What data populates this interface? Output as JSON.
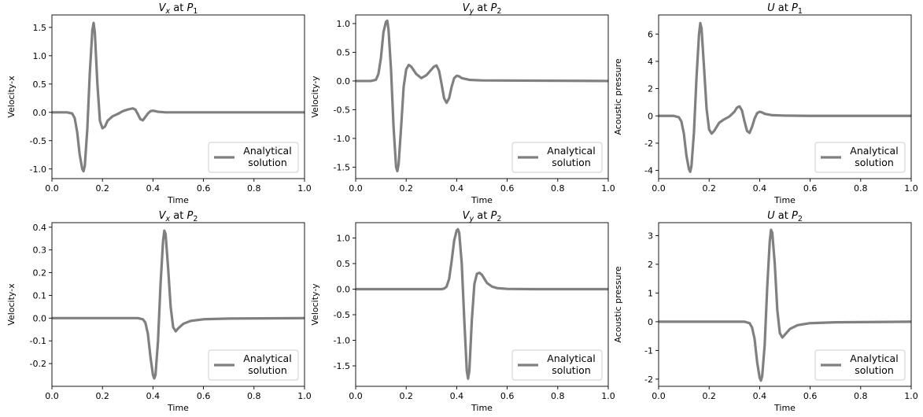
{
  "figure": {
    "background": "#ffffff",
    "line_color": "#808080"
  },
  "chart_data": [
    {
      "type": "line",
      "title": "V_x at P_1",
      "title_parts": {
        "base": "V",
        "sub": "x",
        "mid": " at ",
        "point": "P",
        "point_sub": "1"
      },
      "xlabel": "Time",
      "ylabel": "Velocity-x",
      "xlim": [
        0.0,
        1.0
      ],
      "ylim": [
        -1.17,
        1.72
      ],
      "xticks": [
        "0.0",
        "0.2",
        "0.4",
        "0.6",
        "0.8",
        "1.0"
      ],
      "yticks": [
        "-1.0",
        "-0.5",
        "0.0",
        "0.5",
        "1.0",
        "1.5"
      ],
      "ytick_values": [
        -1.0,
        -0.5,
        0.0,
        0.5,
        1.0,
        1.5
      ],
      "grid": false,
      "legend_position": "lower right",
      "series": [
        {
          "name": "Analytical\nsolution",
          "color": "#808080",
          "x": [
            0.0,
            0.06,
            0.08,
            0.09,
            0.1,
            0.11,
            0.12,
            0.125,
            0.13,
            0.14,
            0.15,
            0.16,
            0.165,
            0.17,
            0.18,
            0.19,
            0.2,
            0.21,
            0.22,
            0.24,
            0.26,
            0.28,
            0.3,
            0.32,
            0.33,
            0.34,
            0.35,
            0.36,
            0.37,
            0.38,
            0.39,
            0.4,
            0.41,
            0.42,
            0.45,
            0.5,
            0.6,
            1.0
          ],
          "y": [
            0.0,
            0.0,
            -0.02,
            -0.1,
            -0.35,
            -0.75,
            -1.0,
            -1.04,
            -0.95,
            -0.3,
            0.7,
            1.45,
            1.58,
            1.4,
            0.5,
            -0.15,
            -0.28,
            -0.25,
            -0.15,
            -0.07,
            -0.03,
            0.02,
            0.05,
            0.07,
            0.05,
            -0.03,
            -0.12,
            -0.14,
            -0.08,
            -0.02,
            0.02,
            0.03,
            0.02,
            0.01,
            0.0,
            0.0,
            0.0,
            0.0
          ]
        }
      ]
    },
    {
      "type": "line",
      "title": "V_y at P_2",
      "title_parts": {
        "base": "V",
        "sub": "y",
        "mid": " at ",
        "point": "P",
        "point_sub": "2"
      },
      "xlabel": "Time",
      "ylabel": "Velocity-y",
      "xlim": [
        0.0,
        1.0
      ],
      "ylim": [
        -1.7,
        1.15
      ],
      "xticks": [
        "0.0",
        "0.2",
        "0.4",
        "0.6",
        "0.8",
        "1.0"
      ],
      "yticks": [
        "-1.5",
        "-1.0",
        "-0.5",
        "0.0",
        "0.5",
        "1.0"
      ],
      "ytick_values": [
        -1.5,
        -1.0,
        -0.5,
        0.0,
        0.5,
        1.0
      ],
      "grid": false,
      "legend_position": "lower right",
      "series": [
        {
          "name": "Analytical\nsolution",
          "color": "#808080",
          "x": [
            0.0,
            0.06,
            0.08,
            0.09,
            0.1,
            0.11,
            0.12,
            0.125,
            0.13,
            0.14,
            0.15,
            0.16,
            0.165,
            0.17,
            0.18,
            0.19,
            0.2,
            0.21,
            0.22,
            0.24,
            0.26,
            0.28,
            0.3,
            0.31,
            0.32,
            0.33,
            0.34,
            0.35,
            0.36,
            0.37,
            0.38,
            0.39,
            0.4,
            0.41,
            0.42,
            0.45,
            0.5,
            1.0
          ],
          "y": [
            0.0,
            0.0,
            0.02,
            0.12,
            0.4,
            0.85,
            1.03,
            1.05,
            0.9,
            0.2,
            -0.8,
            -1.5,
            -1.57,
            -1.45,
            -0.8,
            -0.1,
            0.2,
            0.28,
            0.25,
            0.12,
            0.05,
            0.1,
            0.2,
            0.25,
            0.27,
            0.18,
            -0.05,
            -0.3,
            -0.38,
            -0.3,
            -0.1,
            0.05,
            0.09,
            0.08,
            0.05,
            0.02,
            0.01,
            0.0
          ]
        }
      ]
    },
    {
      "type": "line",
      "title": "U at P_1",
      "title_parts": {
        "base": "U",
        "sub": "",
        "mid": " at ",
        "point": "P",
        "point_sub": "1"
      },
      "xlabel": "Time",
      "ylabel": "Acoustic pressure",
      "xlim": [
        0.0,
        1.0
      ],
      "ylim": [
        -4.6,
        7.4
      ],
      "xticks": [
        "0.0",
        "0.2",
        "0.4",
        "0.6",
        "0.8",
        "1.0"
      ],
      "yticks": [
        "-4",
        "-2",
        "0",
        "2",
        "4",
        "6"
      ],
      "ytick_values": [
        -4,
        -2,
        0,
        2,
        4,
        6
      ],
      "grid": false,
      "legend_position": "lower right",
      "series": [
        {
          "name": "Analytical\nsolution",
          "color": "#808080",
          "x": [
            0.0,
            0.06,
            0.08,
            0.09,
            0.1,
            0.11,
            0.12,
            0.125,
            0.13,
            0.14,
            0.15,
            0.16,
            0.165,
            0.17,
            0.18,
            0.19,
            0.2,
            0.21,
            0.22,
            0.24,
            0.26,
            0.28,
            0.3,
            0.31,
            0.32,
            0.33,
            0.34,
            0.35,
            0.36,
            0.37,
            0.38,
            0.39,
            0.4,
            0.41,
            0.42,
            0.45,
            0.5,
            0.6,
            1.0
          ],
          "y": [
            0.0,
            0.0,
            -0.1,
            -0.4,
            -1.3,
            -2.9,
            -3.9,
            -4.1,
            -3.7,
            -1.2,
            2.8,
            6.0,
            6.8,
            6.4,
            3.5,
            0.5,
            -1.0,
            -1.3,
            -1.1,
            -0.5,
            -0.25,
            -0.05,
            0.3,
            0.6,
            0.7,
            0.4,
            -0.4,
            -1.1,
            -1.25,
            -0.8,
            -0.2,
            0.2,
            0.3,
            0.25,
            0.15,
            0.05,
            0.02,
            0.0,
            0.0
          ]
        }
      ]
    },
    {
      "type": "line",
      "title": "V_x at P_2",
      "title_parts": {
        "base": "V",
        "sub": "x",
        "mid": " at ",
        "point": "P",
        "point_sub": "2"
      },
      "xlabel": "Time",
      "ylabel": "Velocity-x",
      "xlim": [
        0.0,
        1.0
      ],
      "ylim": [
        -0.3,
        0.42
      ],
      "xticks": [
        "0.0",
        "0.2",
        "0.4",
        "0.6",
        "0.8",
        "1.0"
      ],
      "yticks": [
        "-0.2",
        "-0.1",
        "0.0",
        "0.1",
        "0.2",
        "0.3",
        "0.4"
      ],
      "ytick_values": [
        -0.2,
        -0.1,
        0.0,
        0.1,
        0.2,
        0.3,
        0.4
      ],
      "grid": false,
      "legend_position": "lower right",
      "series": [
        {
          "name": "Analytical\nsolution",
          "color": "#808080",
          "x": [
            0.0,
            0.34,
            0.36,
            0.37,
            0.38,
            0.39,
            0.4,
            0.405,
            0.41,
            0.42,
            0.43,
            0.44,
            0.445,
            0.45,
            0.46,
            0.47,
            0.48,
            0.49,
            0.5,
            0.52,
            0.55,
            0.6,
            0.7,
            1.0
          ],
          "y": [
            0.0,
            0.0,
            -0.005,
            -0.02,
            -0.07,
            -0.17,
            -0.25,
            -0.265,
            -0.25,
            -0.1,
            0.15,
            0.34,
            0.385,
            0.37,
            0.22,
            0.05,
            -0.04,
            -0.058,
            -0.045,
            -0.025,
            -0.012,
            -0.005,
            -0.002,
            0.0
          ]
        }
      ]
    },
    {
      "type": "line",
      "title": "V_y at P_2",
      "title_parts": {
        "base": "V",
        "sub": "y",
        "mid": " at ",
        "point": "P",
        "point_sub": "2"
      },
      "xlabel": "Time",
      "ylabel": "Velocity-y",
      "xlim": [
        0.0,
        1.0
      ],
      "ylim": [
        -1.9,
        1.3
      ],
      "xticks": [
        "0.0",
        "0.2",
        "0.4",
        "0.6",
        "0.8",
        "1.0"
      ],
      "yticks": [
        "-1.5",
        "-1.0",
        "-0.5",
        "0.0",
        "0.5",
        "1.0"
      ],
      "ytick_values": [
        -1.5,
        -1.0,
        -0.5,
        0.0,
        0.5,
        1.0
      ],
      "grid": false,
      "legend_position": "lower right",
      "series": [
        {
          "name": "Analytical\nsolution",
          "color": "#808080",
          "x": [
            0.0,
            0.34,
            0.35,
            0.36,
            0.37,
            0.38,
            0.39,
            0.4,
            0.405,
            0.41,
            0.42,
            0.43,
            0.44,
            0.445,
            0.45,
            0.46,
            0.47,
            0.48,
            0.49,
            0.5,
            0.51,
            0.52,
            0.54,
            0.56,
            0.6,
            0.7,
            1.0
          ],
          "y": [
            0.0,
            0.0,
            0.01,
            0.05,
            0.2,
            0.55,
            0.95,
            1.15,
            1.17,
            1.1,
            0.5,
            -0.6,
            -1.6,
            -1.75,
            -1.6,
            -0.6,
            0.1,
            0.3,
            0.32,
            0.28,
            0.2,
            0.12,
            0.05,
            0.02,
            0.005,
            0.0,
            0.0
          ]
        }
      ]
    },
    {
      "type": "line",
      "title": "U at P_2",
      "title_parts": {
        "base": "U",
        "sub": "",
        "mid": " at ",
        "point": "P",
        "point_sub": "2"
      },
      "xlabel": "Time",
      "ylabel": "Acoustic pressure",
      "xlim": [
        0.0,
        1.0
      ],
      "ylim": [
        -2.25,
        3.45
      ],
      "xticks": [
        "0.0",
        "0.2",
        "0.4",
        "0.6",
        "0.8",
        "1.0"
      ],
      "yticks": [
        "-2",
        "-1",
        "0",
        "1",
        "2",
        "3"
      ],
      "ytick_values": [
        -2,
        -1,
        0,
        1,
        2,
        3
      ],
      "grid": false,
      "legend_position": "lower right",
      "series": [
        {
          "name": "Analytical\nsolution",
          "color": "#808080",
          "x": [
            0.0,
            0.34,
            0.36,
            0.37,
            0.38,
            0.39,
            0.4,
            0.405,
            0.41,
            0.42,
            0.43,
            0.44,
            0.445,
            0.45,
            0.46,
            0.47,
            0.48,
            0.49,
            0.5,
            0.52,
            0.55,
            0.6,
            0.7,
            1.0
          ],
          "y": [
            0.0,
            0.0,
            -0.05,
            -0.2,
            -0.6,
            -1.4,
            -1.95,
            -2.05,
            -1.9,
            -0.8,
            1.2,
            2.8,
            3.2,
            3.1,
            2.0,
            0.4,
            -0.4,
            -0.55,
            -0.45,
            -0.25,
            -0.12,
            -0.05,
            -0.02,
            0.0
          ]
        }
      ]
    }
  ]
}
